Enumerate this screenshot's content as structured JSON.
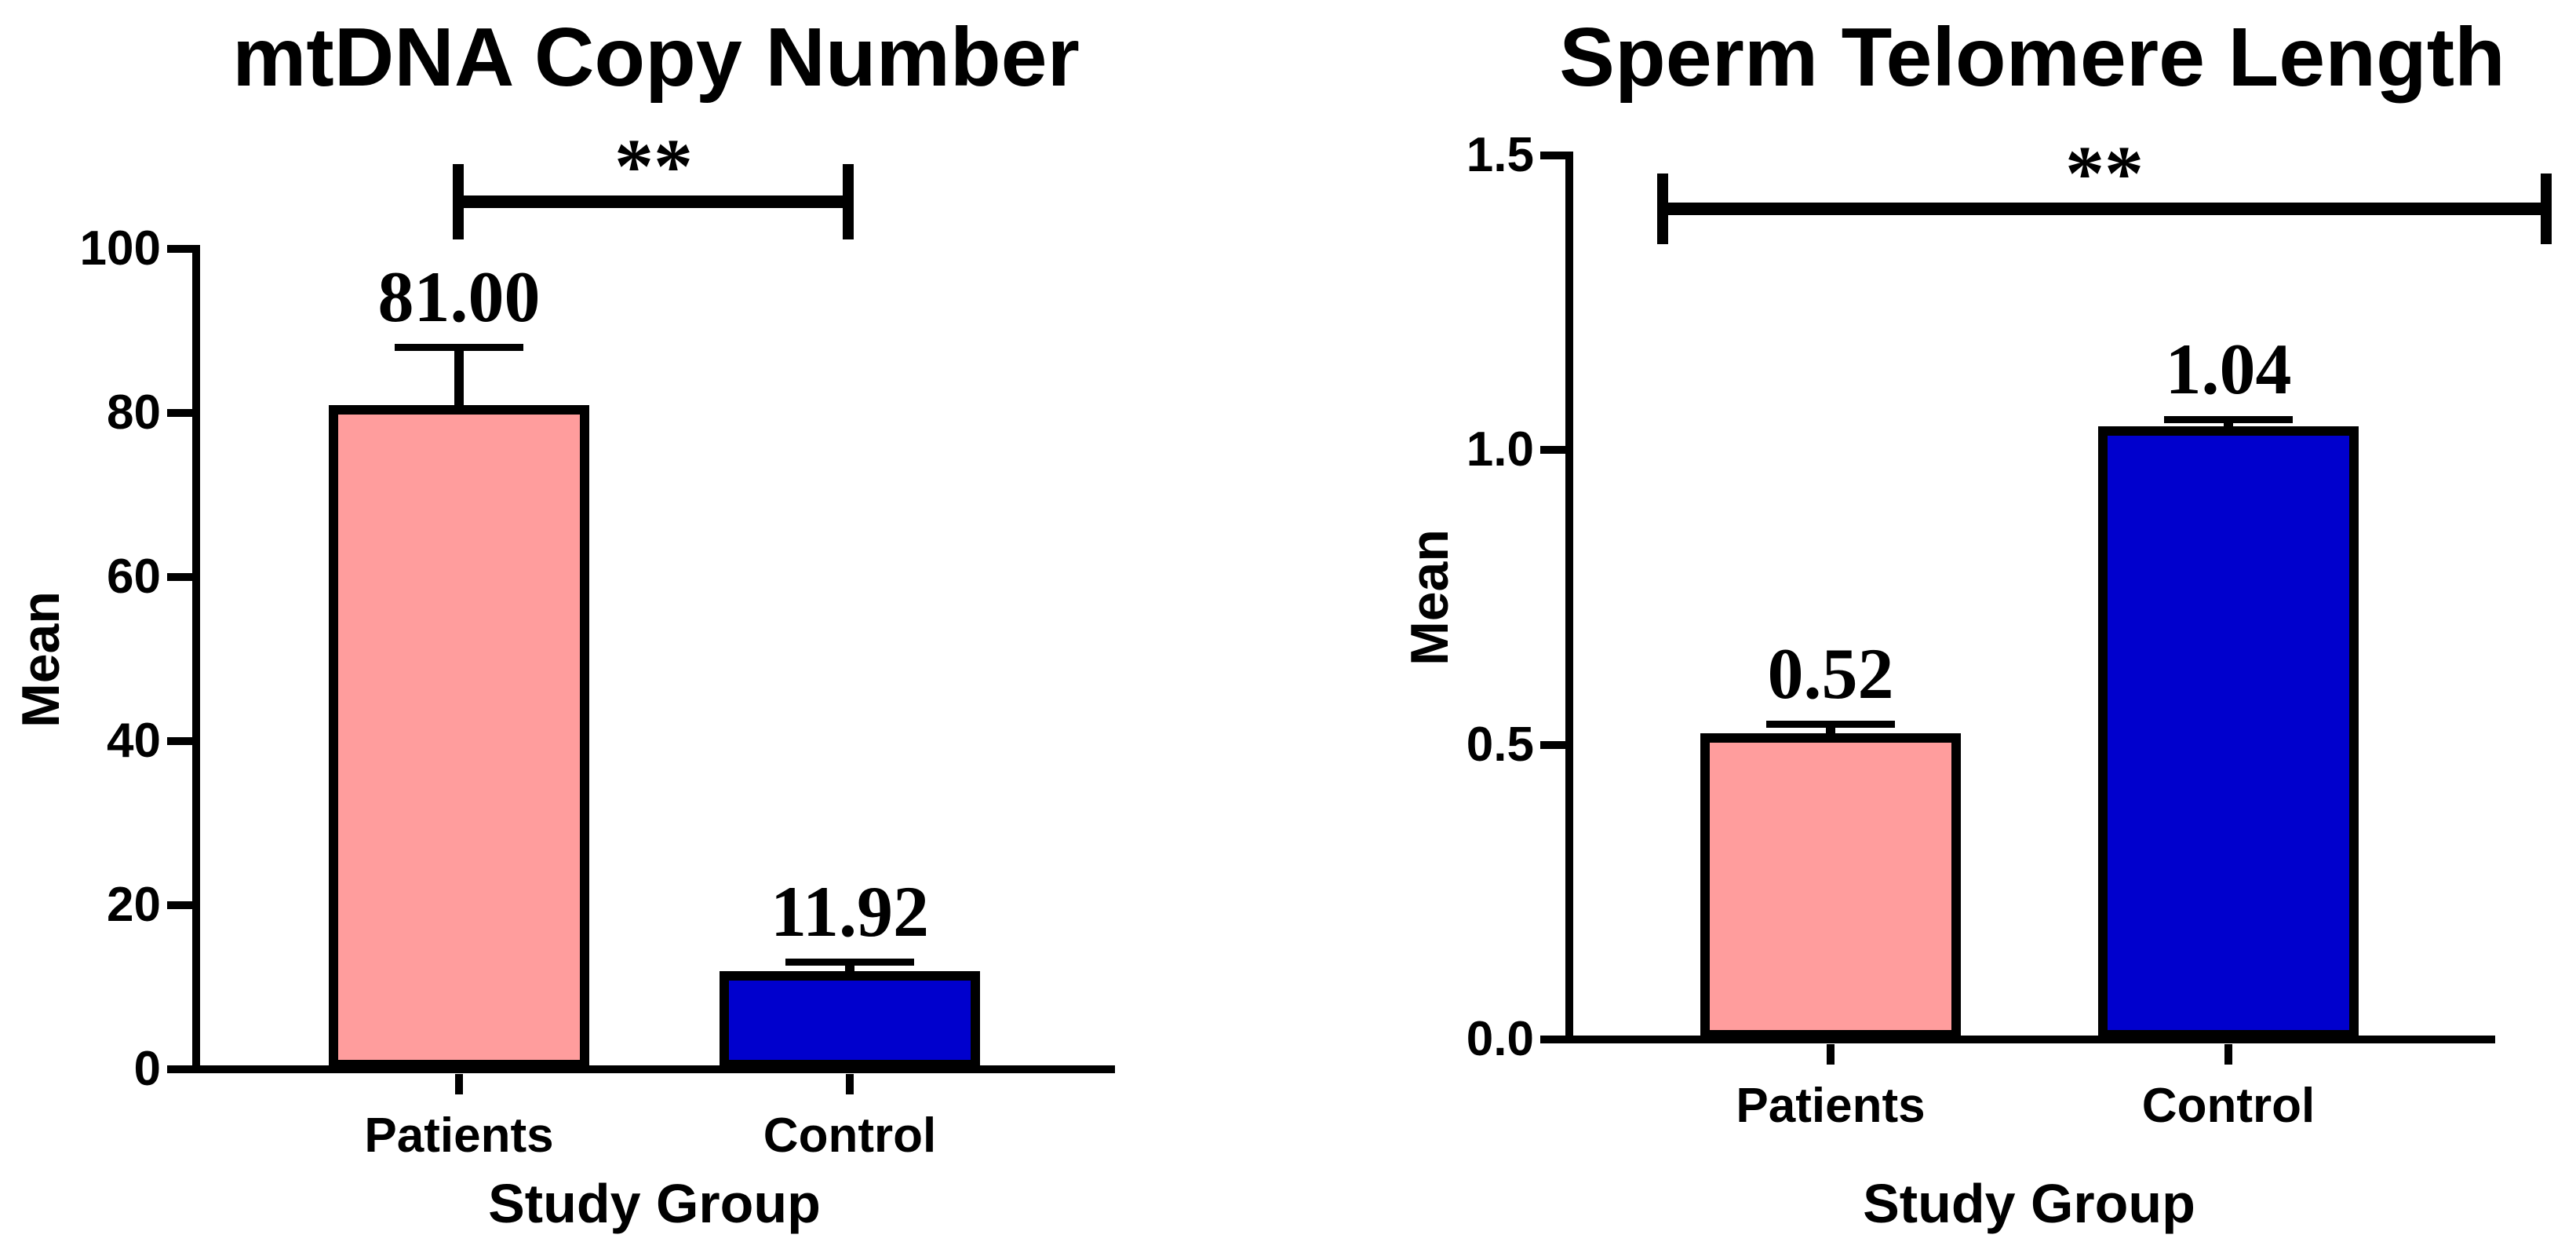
{
  "figure": {
    "background_color": "#FFFFFF",
    "text_color": "#000000"
  },
  "chart_data": [
    {
      "type": "bar",
      "title": "mtDNA Copy Number",
      "xlabel": "Study Group",
      "ylabel": "Mean",
      "categories": [
        "Patients",
        "Control"
      ],
      "values": [
        81.0,
        11.92
      ],
      "errors": [
        7.0,
        1.2
      ],
      "error_direction": "up",
      "value_labels": [
        "81.00",
        "11.92"
      ],
      "bar_colors": [
        "#FF9D9D",
        "#0000CD"
      ],
      "bar_border_color": "#000000",
      "ylim": [
        0,
        100
      ],
      "yticks": [
        0,
        20,
        40,
        60,
        80,
        100
      ],
      "ytick_labels": [
        "0",
        "20",
        "40",
        "60",
        "80",
        "100"
      ],
      "grid": false,
      "legend": "none",
      "significance": "**",
      "significance_span": [
        "Patients",
        "Control"
      ]
    },
    {
      "type": "bar",
      "title": "Sperm Telomere Length",
      "xlabel": "Study Group",
      "ylabel": "Mean",
      "categories": [
        "Patients",
        "Control"
      ],
      "values": [
        0.52,
        1.04
      ],
      "errors": [
        0.015,
        0.012
      ],
      "error_direction": "up",
      "value_labels": [
        "0.52",
        "1.04"
      ],
      "bar_colors": [
        "#FF9D9D",
        "#0000CD"
      ],
      "bar_border_color": "#000000",
      "ylim": [
        0.0,
        1.5
      ],
      "yticks": [
        0.0,
        0.5,
        1.0,
        1.5
      ],
      "ytick_labels": [
        "0.0",
        "0.5",
        "1.0",
        "1.5"
      ],
      "grid": false,
      "legend": "none",
      "significance": "**",
      "significance_span": [
        "Patients",
        "Control"
      ]
    }
  ]
}
